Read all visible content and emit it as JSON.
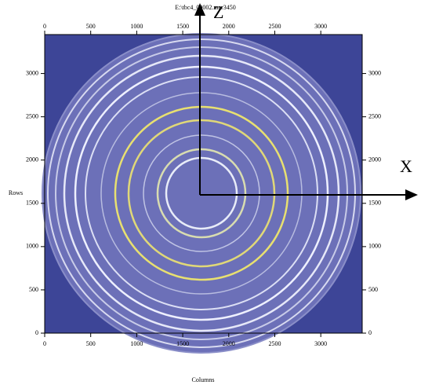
{
  "chart_data": {
    "type": "image",
    "title": "E:\\tbc4_00002.mar3450",
    "xlabel": "Columns",
    "ylabel": "Rows",
    "xlim": [
      0,
      3450
    ],
    "ylim": [
      0,
      3450
    ],
    "xticks": [
      0,
      500,
      1000,
      1500,
      2000,
      2500,
      3000
    ],
    "yticks": [
      0,
      500,
      1000,
      1500,
      2000,
      2500,
      3000
    ],
    "annotations": [
      "Z",
      "X"
    ]
  }
}
